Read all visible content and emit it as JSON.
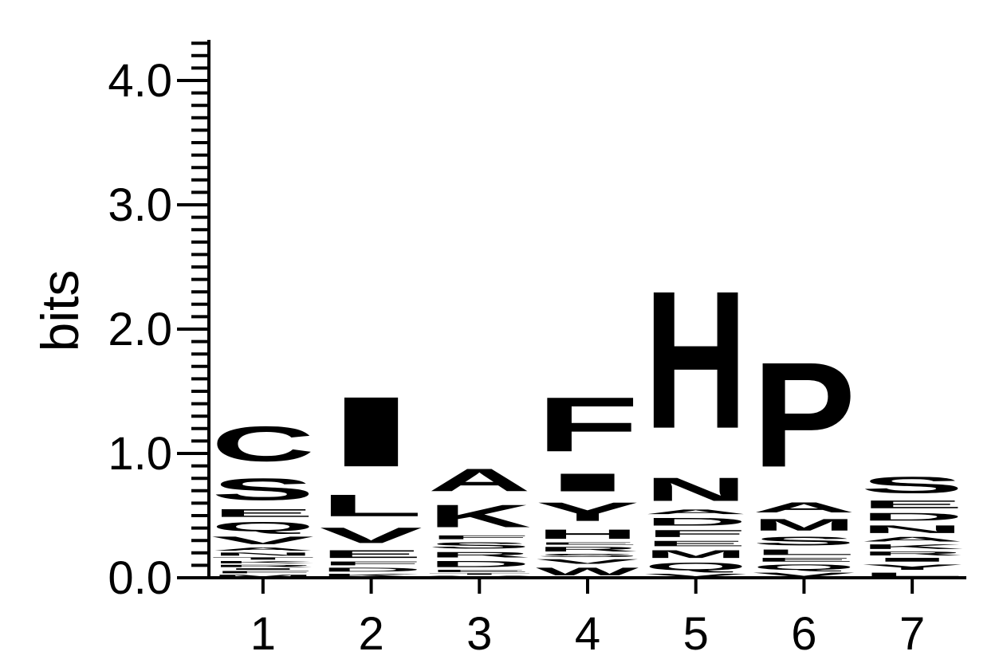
{
  "chart_data": {
    "type": "sequence-logo",
    "ylabel": "bits",
    "ylim": [
      0,
      4.3
    ],
    "yticks": [
      {
        "value": 0.0,
        "label": "0.0"
      },
      {
        "value": 1.0,
        "label": "1.0"
      },
      {
        "value": 2.0,
        "label": "2.0"
      },
      {
        "value": 3.0,
        "label": "3.0"
      },
      {
        "value": 4.0,
        "label": "4.0"
      }
    ],
    "positions": [
      {
        "label": "1",
        "letters": [
          {
            "char": "M",
            "bits": 0.03
          },
          {
            "char": "F",
            "bits": 0.03
          },
          {
            "char": "I",
            "bits": 0.02
          },
          {
            "char": "R",
            "bits": 0.03
          },
          {
            "char": "K",
            "bits": 0.03
          },
          {
            "char": "T",
            "bits": 0.03
          },
          {
            "char": "N",
            "bits": 0.04
          },
          {
            "char": "A",
            "bits": 0.04
          },
          {
            "char": "V",
            "bits": 0.1
          },
          {
            "char": "Q",
            "bits": 0.12
          },
          {
            "char": "E",
            "bits": 0.1
          },
          {
            "char": "S",
            "bits": 0.28
          },
          {
            "char": "C",
            "bits": 0.45
          }
        ]
      },
      {
        "label": "2",
        "letters": [
          {
            "char": "K",
            "bits": 0.04
          },
          {
            "char": "D",
            "bits": 0.05
          },
          {
            "char": "F",
            "bits": 0.05
          },
          {
            "char": "E",
            "bits": 0.1
          },
          {
            "char": "V",
            "bits": 0.2
          },
          {
            "char": "L",
            "bits": 0.28
          },
          {
            "char": "I",
            "bits": 0.9
          }
        ]
      },
      {
        "label": "3",
        "letters": [
          {
            "char": "V",
            "bits": 0.02
          },
          {
            "char": "T",
            "bits": 0.02
          },
          {
            "char": "E",
            "bits": 0.03
          },
          {
            "char": "D",
            "bits": 0.08
          },
          {
            "char": "R",
            "bits": 0.07
          },
          {
            "char": "S",
            "bits": 0.08
          },
          {
            "char": "F",
            "bits": 0.05
          },
          {
            "char": "K",
            "bits": 0.29
          },
          {
            "char": "A",
            "bits": 0.29
          }
        ]
      },
      {
        "label": "4",
        "letters": [
          {
            "char": "W",
            "bits": 0.1
          },
          {
            "char": "V",
            "bits": 0.06
          },
          {
            "char": "S",
            "bits": 0.04
          },
          {
            "char": "R",
            "bits": 0.06
          },
          {
            "char": "E",
            "bits": 0.03
          },
          {
            "char": "H",
            "bits": 0.12
          },
          {
            "char": "Y",
            "bits": 0.24
          },
          {
            "char": "I",
            "bits": 0.23
          },
          {
            "char": "F",
            "bits": 0.7
          }
        ]
      },
      {
        "label": "5",
        "letters": [
          {
            "char": "V",
            "bits": 0.04
          },
          {
            "char": "Q",
            "bits": 0.1
          },
          {
            "char": "M",
            "bits": 0.1
          },
          {
            "char": "E",
            "bits": 0.07
          },
          {
            "char": "F",
            "bits": 0.09
          },
          {
            "char": "D",
            "bits": 0.1
          },
          {
            "char": "A",
            "bits": 0.06
          },
          {
            "char": "N",
            "bits": 0.3
          },
          {
            "char": "H",
            "bits": 1.77
          }
        ]
      },
      {
        "label": "6",
        "letters": [
          {
            "char": "V",
            "bits": 0.05
          },
          {
            "char": "Q",
            "bits": 0.07
          },
          {
            "char": "E",
            "bits": 0.05
          },
          {
            "char": "L",
            "bits": 0.07
          },
          {
            "char": "S",
            "bits": 0.11
          },
          {
            "char": "M",
            "bits": 0.15
          },
          {
            "char": "A",
            "bits": 0.13
          },
          {
            "char": "P",
            "bits": 1.35
          }
        ]
      },
      {
        "label": "7",
        "letters": [
          {
            "char": "L",
            "bits": 0.05
          },
          {
            "char": "Y",
            "bits": 0.07
          },
          {
            "char": "I",
            "bits": 0.05
          },
          {
            "char": "R",
            "bits": 0.05
          },
          {
            "char": "K",
            "bits": 0.06
          },
          {
            "char": "A",
            "bits": 0.06
          },
          {
            "char": "N",
            "bits": 0.1
          },
          {
            "char": "D",
            "bits": 0.1
          },
          {
            "char": "E",
            "bits": 0.1
          },
          {
            "char": "S",
            "bits": 0.21
          }
        ]
      }
    ]
  }
}
